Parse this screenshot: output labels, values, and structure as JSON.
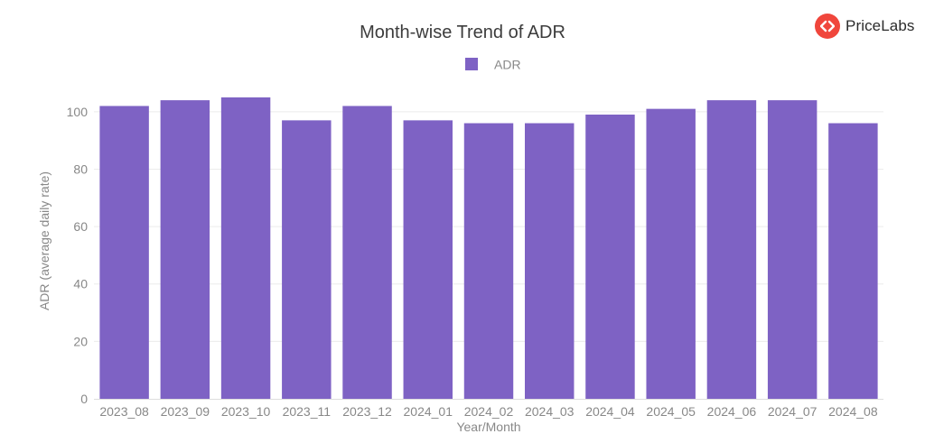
{
  "brand": {
    "name": "PriceLabs",
    "accent": "#f0463c",
    "icon": "code-brackets-icon"
  },
  "chart_data": {
    "type": "bar",
    "title": "Month-wise Trend of ADR",
    "xlabel": "Year/Month",
    "ylabel": "ADR (average daily rate)",
    "ylim": [
      0,
      110
    ],
    "yticks": [
      0,
      20,
      40,
      60,
      80,
      100
    ],
    "grid": true,
    "legend_position": "top-center",
    "categories": [
      "2023_08",
      "2023_09",
      "2023_10",
      "2023_11",
      "2023_12",
      "2024_01",
      "2024_02",
      "2024_03",
      "2024_04",
      "2024_05",
      "2024_06",
      "2024_07",
      "2024_08"
    ],
    "series": [
      {
        "name": "ADR",
        "color": "#7e62c4",
        "values": [
          102,
          104,
          105,
          97,
          102,
          97,
          96,
          96,
          99,
          101,
          104,
          104,
          96
        ]
      }
    ]
  }
}
